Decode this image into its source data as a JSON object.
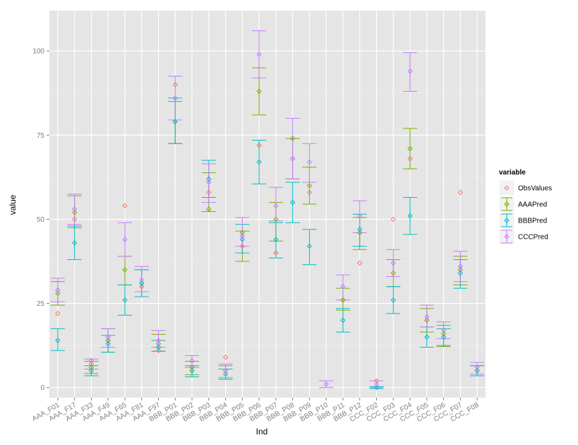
{
  "chart_data": {
    "type": "errorbar-scatter",
    "xlabel": "Ind",
    "ylabel": "value",
    "ylim": [
      -3,
      112
    ],
    "y_ticks": [
      "0",
      "25",
      "50",
      "75",
      "100"
    ],
    "categories": [
      "AAA_F01",
      "AAA_F17",
      "AAA_F33",
      "AAA_F49",
      "AAA_F65",
      "AAA_F81",
      "AAA_F97",
      "BBB_P01",
      "BBB_P02",
      "BBB_P03",
      "BBB_P04",
      "BBB_P05",
      "BBB_P06",
      "BBB_P07",
      "BBB_P08",
      "BBB_P09",
      "BBB_P10",
      "BBB_P11",
      "BBB_P12",
      "CCC_F02",
      "CCC_F03",
      "CCC_F04",
      "CCC_F05",
      "CCC_F06",
      "CCC_F07",
      "CCC_F08"
    ],
    "legend": {
      "title": "variable",
      "position": "right",
      "entries": [
        "ObsValues",
        "AAAPred",
        "BBBPred",
        "CCCPred"
      ]
    },
    "series": [
      {
        "name": "ObsValues",
        "color": "#F8766D",
        "values": [
          22,
          50,
          7,
          14,
          54,
          30,
          11,
          90,
          5,
          58,
          9,
          42,
          72,
          40,
          68,
          58,
          null,
          26,
          37,
          2,
          50,
          68,
          20,
          15,
          58,
          5
        ],
        "lower": [],
        "upper": []
      },
      {
        "name": "AAAPred",
        "color": "#7CAE00",
        "values": [
          28,
          52,
          6,
          14,
          35,
          31,
          13,
          79,
          6,
          53,
          5,
          46,
          88,
          50,
          74,
          60,
          null,
          26,
          46,
          null,
          34,
          71,
          20,
          16,
          35,
          5
        ],
        "lower": [
          24.5,
          47.5,
          4.2,
          10.5,
          30.5,
          27.0,
          10.8,
          72.5,
          3.8,
          52.3,
          2.5,
          37.5,
          81.0,
          43.5,
          62.0,
          54.5,
          null,
          23.0,
          41.0,
          null,
          30.0,
          65.0,
          16.5,
          12.2,
          30.5,
          3.5
        ],
        "upper": [
          31.5,
          57.0,
          7.8,
          17.5,
          39.0,
          35.0,
          15.8,
          85.0,
          7.8,
          63.8,
          6.5,
          46.5,
          95.0,
          55.0,
          74.0,
          65.5,
          null,
          29.5,
          50.5,
          null,
          38.0,
          77.0,
          23.5,
          18.5,
          39.0,
          6.5
        ]
      },
      {
        "name": "BBBPred",
        "color": "#00BFC4",
        "values": [
          14,
          43,
          5,
          13,
          26,
          31,
          12,
          79,
          5,
          62,
          4,
          44,
          67,
          44,
          55,
          42,
          null,
          20,
          47,
          0,
          26,
          51,
          15,
          15,
          34,
          5
        ],
        "lower": [
          11.0,
          38.0,
          3.5,
          10.5,
          21.5,
          27.0,
          10.8,
          72.5,
          3.2,
          56.5,
          2.5,
          40.0,
          60.5,
          38.5,
          49.0,
          36.5,
          null,
          16.5,
          42.0,
          -0.3,
          22.0,
          45.5,
          12.0,
          12.5,
          29.5,
          3.5
        ],
        "upper": [
          17.5,
          48.0,
          6.5,
          15.5,
          30.5,
          35.0,
          14.0,
          86.0,
          6.5,
          67.5,
          5.5,
          48.5,
          73.5,
          49.0,
          61.0,
          47.0,
          null,
          23.5,
          51.5,
          0.3,
          30.0,
          56.5,
          18.0,
          17.5,
          38.0,
          6.5
        ]
      },
      {
        "name": "CCCPred",
        "color": "#C77CFF",
        "values": [
          29,
          53,
          8,
          15,
          44,
          32,
          14,
          86,
          8,
          61,
          5,
          45,
          99,
          54,
          68,
          67,
          1,
          30,
          51,
          1,
          37,
          94,
          21,
          17,
          36,
          6
        ],
        "lower": [
          25.5,
          48.5,
          5.5,
          12.0,
          39.0,
          28.5,
          12.0,
          79.5,
          6.0,
          55.0,
          3.0,
          42.0,
          92.0,
          49.5,
          62.0,
          61.0,
          0.0,
          26.0,
          46.0,
          0.0,
          33.0,
          88.0,
          18.0,
          14.5,
          31.5,
          4.0
        ],
        "upper": [
          32.5,
          57.5,
          8.5,
          17.5,
          49.0,
          36.0,
          17.0,
          92.5,
          9.5,
          66.5,
          7.0,
          50.5,
          106.0,
          59.5,
          80.0,
          72.5,
          2.0,
          33.5,
          55.5,
          2.0,
          41.0,
          99.5,
          24.5,
          19.5,
          40.5,
          7.5
        ]
      }
    ]
  }
}
